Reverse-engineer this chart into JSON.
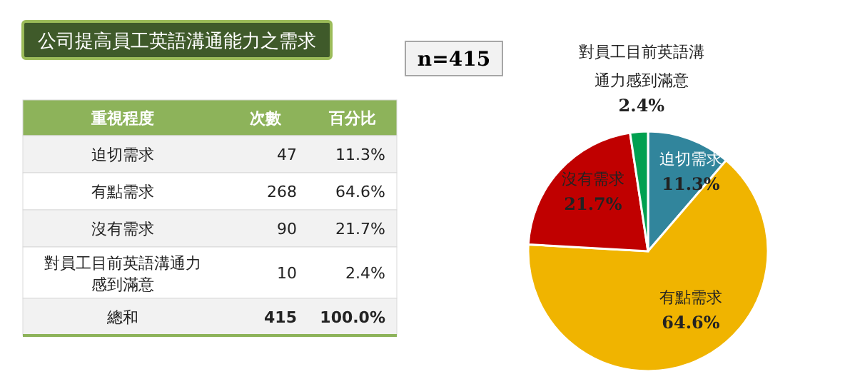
{
  "chart_data": [
    {
      "type": "other",
      "title": "公司提高員工英語溝通能力之需求",
      "annotations": [
        "重視程度",
        "次數",
        "百分比",
        "迫切需求",
        "47",
        "11.3%",
        "有點需求",
        "268",
        "64.6%",
        "沒有需求",
        "90",
        "21.7%",
        "對員工目前英語溝通力感到滿意",
        "10",
        "2.4%",
        "總和",
        "415",
        "100.0%"
      ]
    },
    {
      "type": "pie",
      "annotations": [
        "n=415"
      ],
      "categories": [
        "迫切需求",
        "有點需求",
        "沒有需求",
        "對員工目前英語溝通力感到滿意"
      ],
      "values": [
        11.3,
        64.6,
        21.7,
        2.4
      ],
      "colors": [
        "#31859c",
        "#f0b400",
        "#c00000",
        "#00a050"
      ],
      "value_labels": [
        "11.3%",
        "64.6%",
        "21.7%",
        "2.4%"
      ]
    }
  ]
}
